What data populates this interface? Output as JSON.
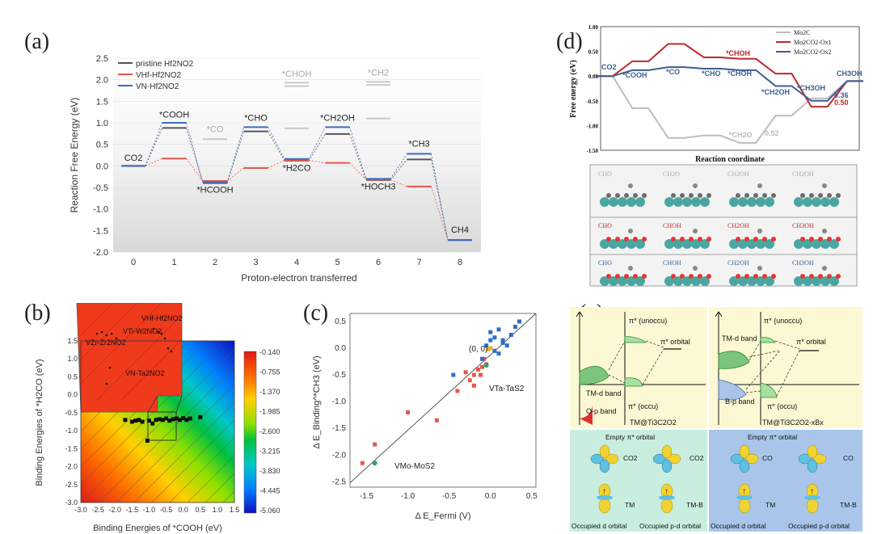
{
  "labels": {
    "a": "(a)",
    "b": "(b)",
    "c": "(c)",
    "d": "(d)",
    "e": "(e)"
  },
  "panel_a": {
    "legend": [
      "pristine Hf2NO2",
      "VHf-Hf2NO2",
      "VN-Hf2NO2"
    ],
    "colors": {
      "pristine": "#555555",
      "vhf": "#e8574a",
      "vn": "#3c6cc4",
      "faded": "#b5b5b5"
    },
    "chart_data": {
      "type": "line",
      "title": "",
      "xlabel": "Proton-electron transferred",
      "ylabel": "Reaction Free Energy (eV)",
      "x": [
        0,
        1,
        2,
        3,
        4,
        5,
        6,
        7,
        8
      ],
      "ylim": [
        -2.0,
        2.5
      ],
      "yticks": [
        "2.5",
        "2.0",
        "1.5",
        "1.0",
        "0.5",
        "0.0",
        "-0.5",
        "-1.0",
        "-1.5",
        "-2.0"
      ],
      "species": [
        "CO2",
        "*COOH",
        "*HCOOH",
        "*CHO",
        "*H2CO",
        "*CH2OH",
        "*HOCH3",
        "*CH3",
        "CH4"
      ],
      "faded_species": [
        "*CO",
        "*CHOH",
        "*CH2"
      ],
      "series": [
        {
          "name": "pristine",
          "values": [
            0,
            0.88,
            -0.4,
            0.8,
            0.12,
            0.74,
            -0.33,
            0.15,
            -1.72
          ]
        },
        {
          "name": "VHf",
          "values": [
            0,
            0.17,
            -0.35,
            -0.05,
            0.13,
            0.07,
            -0.32,
            -0.48,
            -1.72
          ]
        },
        {
          "name": "VN",
          "values": [
            0,
            1.0,
            -0.38,
            0.9,
            0.16,
            0.9,
            -0.3,
            0.28,
            -1.72
          ]
        }
      ],
      "faded": [
        {
          "x": 2,
          "values": [
            0.62
          ]
        },
        {
          "x": 4,
          "values": [
            1.93,
            1.85,
            0.87
          ]
        },
        {
          "x": 6,
          "values": [
            1.95,
            1.88,
            1.1
          ]
        }
      ]
    }
  },
  "panel_b": {
    "chart_data": {
      "type": "heatmap",
      "xlabel": "Binding Energies of *COOH (eV)",
      "ylabel": "Binding Energies of *H2CO (eV)",
      "xlim": [
        -3.0,
        1.5
      ],
      "ylim": [
        -3.0,
        1.5
      ],
      "xticks": [
        "-3.0",
        "-2.5",
        "-2.0",
        "-1.5",
        "-1.0",
        "-0.5",
        "0.0",
        "0.5",
        "1.0",
        "1.5"
      ],
      "yticks": [
        "1.5",
        "1.0",
        "0.5",
        "0.0",
        "-0.5",
        "-1.0",
        "-1.5",
        "-2.0",
        "-2.5",
        "-3.0"
      ],
      "colorbar": [
        "-0.140",
        "-0.755",
        "-1.370",
        "-1.985",
        "-2.600",
        "-3.215",
        "-3.830",
        "-4.445",
        "-5.060"
      ],
      "annotations": [
        "VHf-Hf2NO2",
        "VTi-W2NO2",
        "VZr-Zr2NO2",
        "VN-Ta2NO2"
      ],
      "points": [
        [
          -1.7,
          -0.7
        ],
        [
          -1.5,
          -0.75
        ],
        [
          -1.4,
          -0.72
        ],
        [
          -1.3,
          -0.7
        ],
        [
          -1.2,
          -0.75
        ],
        [
          -1.0,
          -0.72
        ],
        [
          -0.9,
          -0.8
        ],
        [
          -0.8,
          -0.7
        ],
        [
          -0.7,
          -0.68
        ],
        [
          -0.6,
          -0.7
        ],
        [
          -0.5,
          -0.66
        ],
        [
          -0.4,
          -0.72
        ],
        [
          -0.3,
          -0.68
        ],
        [
          -0.2,
          -0.66
        ],
        [
          -0.1,
          -0.7
        ],
        [
          0.0,
          -0.65
        ],
        [
          0.1,
          -0.7
        ],
        [
          0.2,
          -0.66
        ],
        [
          0.5,
          -0.62
        ],
        [
          -1.05,
          -1.28
        ]
      ]
    }
  },
  "panel_c": {
    "chart_data": {
      "type": "scatter",
      "xlabel": "Δ E_Fermi (V)",
      "ylabel": "Δ E_Binding^*CH3 (eV)",
      "xlim": [
        -1.7,
        0.55
      ],
      "ylim": [
        -2.6,
        0.65
      ],
      "xticks": [
        "-1.5",
        "-1.0",
        "-0.5",
        "0.0",
        "0.5"
      ],
      "yticks": [
        "0.5",
        "0.0",
        "-0.5",
        "-1.0",
        "-1.5",
        "-2.0",
        "-2.5"
      ],
      "annotations": [
        "(0, 0)",
        "VTa-TaS2",
        "VMo-MoS2"
      ],
      "blue": [
        [
          0.0,
          0.3
        ],
        [
          0.05,
          0.2
        ],
        [
          0.1,
          0.35
        ],
        [
          0.15,
          0.15
        ],
        [
          0.2,
          0.05
        ],
        [
          0.25,
          0.25
        ],
        [
          0.3,
          0.4
        ],
        [
          0.35,
          0.5
        ],
        [
          -0.05,
          0.05
        ],
        [
          0.0,
          0.15
        ],
        [
          0.1,
          -0.1
        ],
        [
          0.05,
          -0.05
        ],
        [
          -0.1,
          -0.2
        ],
        [
          -0.45,
          -0.5
        ],
        [
          0.15,
          0.1
        ]
      ],
      "red": [
        [
          -0.1,
          -0.35
        ],
        [
          -0.2,
          -0.5
        ],
        [
          -0.25,
          -0.6
        ],
        [
          -0.3,
          -0.45
        ],
        [
          -0.4,
          -0.8
        ],
        [
          -0.15,
          -0.4
        ],
        [
          -0.05,
          -0.3
        ],
        [
          -0.12,
          -0.5
        ],
        [
          -0.2,
          -0.7
        ],
        [
          -1.0,
          -1.2
        ],
        [
          -0.65,
          -1.35
        ],
        [
          -1.4,
          -1.8
        ],
        [
          -1.55,
          -2.15
        ],
        [
          -0.08,
          -0.2
        ]
      ],
      "green": [
        [
          -1.4,
          -2.15
        ],
        [
          -0.05,
          -0.32
        ]
      ],
      "yellow": [
        [
          0.0,
          0.0
        ],
        [
          -0.03,
          -0.02
        ]
      ]
    }
  },
  "panel_d": {
    "legend": [
      "Mo2C",
      "Mo2CO2-Ox1",
      "Mo2CO2-Ox2"
    ],
    "chart_data": {
      "type": "line",
      "xlabel": "Reaction coordinate",
      "ylabel": "Free energy (eV)",
      "ylim": [
        -1.5,
        1.0
      ],
      "yticks": [
        "1.00",
        "0.50",
        "0.00",
        "-0.50",
        "-1.00",
        "-1.50"
      ],
      "species_labels": [
        "CO2",
        "*COOH",
        "*CO",
        "*CHO",
        "*CHOH",
        "*CHOH",
        "*CH2OH",
        "*CH3OH",
        "CH3OH",
        "*CH2O"
      ],
      "value_labels": [
        "0.36",
        "0.50",
        "0.52"
      ],
      "series": [
        {
          "name": "Mo2C",
          "values": [
            0,
            -0.65,
            -1.25,
            -1.2,
            -1.35,
            -0.8,
            -0.45,
            -0.1
          ]
        },
        {
          "name": "Mo2CO2-Ox1",
          "values": [
            0,
            0.3,
            0.65,
            0.38,
            0.35,
            0.05,
            -0.62,
            -0.1
          ]
        },
        {
          "name": "Mo2CO2-Ox2",
          "values": [
            0,
            0.12,
            0.18,
            0.15,
            0.12,
            -0.2,
            -0.5,
            -0.1
          ]
        }
      ]
    },
    "structures": {
      "row1": [
        "CHO",
        "CH2O",
        "CH2OH",
        "CH2OH"
      ],
      "row2": [
        "CHO",
        "CHOH",
        "CH2OH",
        "CH3OH"
      ],
      "row3": [
        "CHO",
        "CHOH",
        "CH2OH",
        "CH3OH"
      ]
    }
  },
  "panel_e": {
    "left": {
      "labels": [
        "π* (unoccu)",
        "π* orbital",
        "TM-d band",
        "π* (occu)",
        "O-p band",
        "TM@Ti3C2O2"
      ]
    },
    "right": {
      "labels": [
        "π* (unoccu)",
        "TM-d band",
        "π* orbital",
        "B-p band",
        "π* (occu)",
        "TM@Ti3C2O2-xBx"
      ]
    },
    "bottom_left": {
      "title": "Empty π* orbital",
      "labels": [
        "CO2",
        "CO2",
        "TM",
        "TM-B"
      ],
      "caption_l": "Occupied d orbital",
      "caption_r": "Occupied p-d orbital"
    },
    "bottom_right": {
      "title": "Empty π* orbital",
      "labels": [
        "CO",
        "CO",
        "TM",
        "TM-B"
      ],
      "caption_l": "Occupied d orbital",
      "caption_r": "Occupied p-d orbital"
    }
  }
}
